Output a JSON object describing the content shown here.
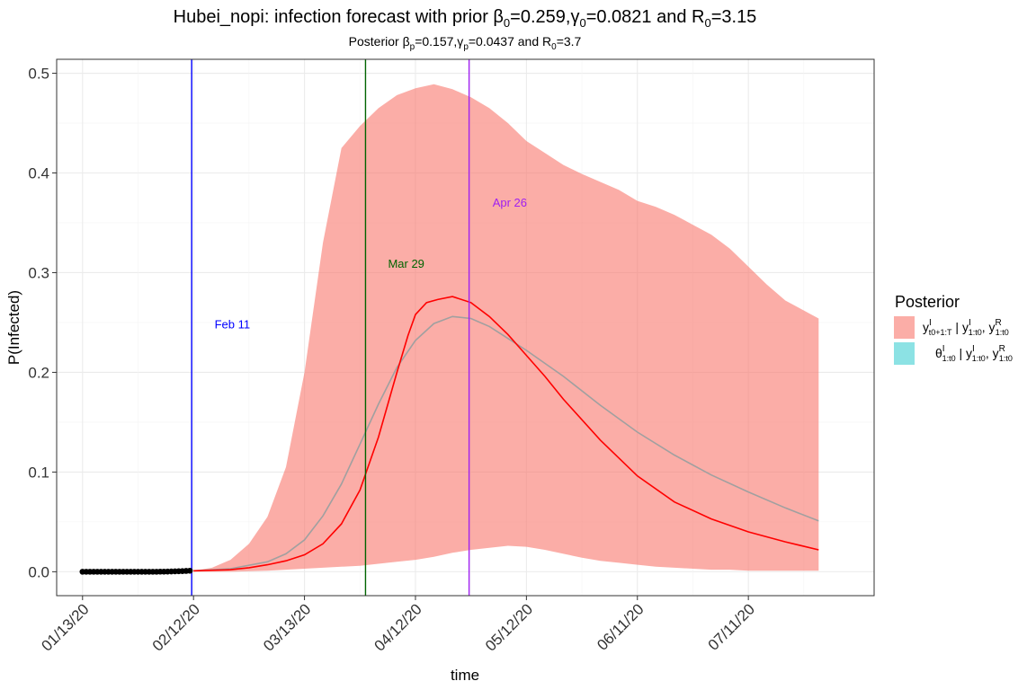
{
  "chart_data": {
    "type": "area",
    "title_text": "Hubei_nopi: infection forecast with prior β",
    "title_sub0": "0",
    "title_part2": "=0.259,γ",
    "title_sub1": "0",
    "title_part3": "=0.0821 and R",
    "title_sub2": "0",
    "title_part4": "=3.15",
    "subtitle_text": "Posterior β",
    "subtitle_sub0": "p",
    "subtitle_part2": "=0.157,γ",
    "subtitle_sub1": "p",
    "subtitle_part3": "=0.0437 and R",
    "subtitle_sub2": "0",
    "subtitle_part4": "=3.7",
    "xlabel": "time",
    "ylabel": "P(Infected)",
    "x_range_days": [
      -7,
      214
    ],
    "ylim": [
      -0.024,
      0.514
    ],
    "y_ticks": [
      {
        "value": 0.0,
        "label": "0.0"
      },
      {
        "value": 0.1,
        "label": "0.1"
      },
      {
        "value": 0.2,
        "label": "0.2"
      },
      {
        "value": 0.3,
        "label": "0.3"
      },
      {
        "value": 0.4,
        "label": "0.4"
      },
      {
        "value": 0.5,
        "label": "0.5"
      }
    ],
    "x_ticks": [
      {
        "day": 0,
        "label": "01/13/20"
      },
      {
        "day": 30,
        "label": "02/12/20"
      },
      {
        "day": 60,
        "label": "03/13/20"
      },
      {
        "day": 90,
        "label": "04/12/20"
      },
      {
        "day": 120,
        "label": "05/12/20"
      },
      {
        "day": 150,
        "label": "06/11/20"
      },
      {
        "day": 180,
        "label": "07/11/20"
      }
    ],
    "grid": true,
    "vlines": [
      {
        "day": 29.5,
        "label": "Feb 11",
        "color": "#0000ff",
        "label_y": 0.244,
        "label_day": 40.5
      },
      {
        "day": 76.5,
        "label": "Mar 29",
        "color": "#006400",
        "label_y": 0.305,
        "label_day": 87.5
      },
      {
        "day": 104.5,
        "label": "Apr 26",
        "color": "#a020f0",
        "label_y": 0.366,
        "label_day": 115.5
      }
    ],
    "observed": {
      "days": [
        0,
        1,
        2,
        3,
        4,
        5,
        6,
        7,
        8,
        9,
        10,
        11,
        12,
        13,
        14,
        15,
        16,
        17,
        18,
        19,
        20,
        21,
        22,
        23,
        24,
        25,
        26,
        27,
        28,
        29
      ],
      "values": [
        0,
        0,
        0,
        0,
        0,
        0,
        0,
        0,
        0,
        0,
        0,
        0,
        0,
        0,
        0,
        0,
        0,
        0,
        0,
        0,
        0,
        0.0001,
        0.0001,
        0.0002,
        0.0003,
        0.0004,
        0.0005,
        0.0006,
        0.0008,
        0.001
      ]
    },
    "band": {
      "name": "y_{t0+1:T} | y^I_{1:t0}, y^R_{1:t0}",
      "color": "#f8766d",
      "days": [
        30,
        35,
        40,
        45,
        50,
        55,
        60,
        65,
        70,
        75,
        80,
        85,
        90,
        95,
        100,
        105,
        110,
        115,
        120,
        125,
        130,
        135,
        140,
        145,
        150,
        155,
        160,
        165,
        170,
        175,
        180,
        185,
        190,
        195,
        199
      ],
      "upper": [
        0.001,
        0.004,
        0.012,
        0.028,
        0.055,
        0.105,
        0.2,
        0.33,
        0.425,
        0.447,
        0.465,
        0.478,
        0.485,
        0.489,
        0.484,
        0.476,
        0.465,
        0.45,
        0.432,
        0.42,
        0.408,
        0.399,
        0.391,
        0.383,
        0.372,
        0.366,
        0.358,
        0.348,
        0.338,
        0.324,
        0.306,
        0.288,
        0.272,
        0.262,
        0.254
      ],
      "lower": [
        0.0,
        0.0,
        0.0,
        0.0005,
        0.001,
        0.002,
        0.003,
        0.004,
        0.005,
        0.006,
        0.008,
        0.01,
        0.012,
        0.015,
        0.019,
        0.022,
        0.024,
        0.026,
        0.025,
        0.022,
        0.018,
        0.014,
        0.011,
        0.009,
        0.007,
        0.005,
        0.004,
        0.003,
        0.002,
        0.002,
        0.001,
        0.001,
        0.001,
        0.001,
        0.001
      ]
    },
    "series": [
      {
        "name": "median",
        "color": "#ff0000",
        "days": [
          30,
          40,
          45,
          50,
          55,
          60,
          65,
          70,
          75,
          80,
          85,
          88,
          90,
          93,
          96,
          100,
          105,
          110,
          115,
          120,
          125,
          130,
          140,
          150,
          160,
          170,
          180,
          190,
          199
        ],
        "values": [
          0.001,
          0.002,
          0.004,
          0.007,
          0.011,
          0.017,
          0.028,
          0.048,
          0.082,
          0.135,
          0.2,
          0.237,
          0.258,
          0.27,
          0.273,
          0.276,
          0.27,
          0.256,
          0.238,
          0.217,
          0.196,
          0.173,
          0.132,
          0.096,
          0.07,
          0.053,
          0.04,
          0.03,
          0.022
        ]
      },
      {
        "name": "mean",
        "color": "#a0a0a0",
        "days": [
          30,
          40,
          50,
          55,
          60,
          65,
          70,
          75,
          80,
          85,
          90,
          95,
          100,
          105,
          110,
          115,
          120,
          130,
          140,
          150,
          160,
          170,
          180,
          190,
          199
        ],
        "values": [
          0.001,
          0.003,
          0.01,
          0.018,
          0.032,
          0.056,
          0.088,
          0.128,
          0.168,
          0.205,
          0.232,
          0.249,
          0.256,
          0.254,
          0.246,
          0.234,
          0.222,
          0.196,
          0.167,
          0.14,
          0.117,
          0.097,
          0.08,
          0.064,
          0.051
        ]
      }
    ],
    "legend": {
      "title": "Posterior",
      "position": "right",
      "items": [
        {
          "color": "#f8766d",
          "main": "y",
          "sup1": "I",
          "sub1": "t0+1:T",
          "rest": " | y",
          "sup2": "I",
          "sub2": "1:t0",
          "rest2": ", y",
          "sup3": "R",
          "sub3": "1:t0"
        },
        {
          "color": "#00bfc4",
          "main": "θ",
          "sup1": "I",
          "sub1": "1:t0",
          "rest": " | y",
          "sup2": "I",
          "sub2": "1:t0",
          "rest2": ", y",
          "sup3": "R",
          "sub3": "1:t0"
        }
      ]
    }
  }
}
